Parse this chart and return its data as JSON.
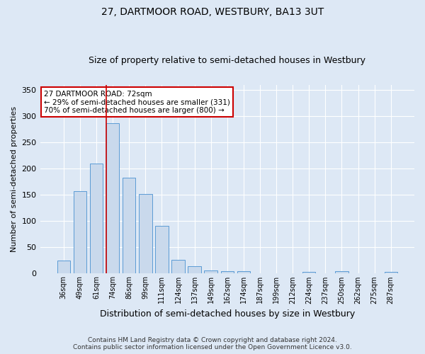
{
  "title": "27, DARTMOOR ROAD, WESTBURY, BA13 3UT",
  "subtitle": "Size of property relative to semi-detached houses in Westbury",
  "xlabel": "Distribution of semi-detached houses by size in Westbury",
  "ylabel": "Number of semi-detached properties",
  "categories": [
    "36sqm",
    "49sqm",
    "61sqm",
    "74sqm",
    "86sqm",
    "99sqm",
    "111sqm",
    "124sqm",
    "137sqm",
    "149sqm",
    "162sqm",
    "174sqm",
    "187sqm",
    "199sqm",
    "212sqm",
    "224sqm",
    "237sqm",
    "250sqm",
    "262sqm",
    "275sqm",
    "287sqm"
  ],
  "values": [
    25,
    157,
    210,
    286,
    183,
    152,
    91,
    26,
    14,
    6,
    5,
    4,
    1,
    0,
    0,
    3,
    0,
    4,
    0,
    0,
    3
  ],
  "bar_color": "#c9d9ec",
  "bar_edge_color": "#5b9bd5",
  "vline_color": "#cc0000",
  "annotation_text": "27 DARTMOOR ROAD: 72sqm\n← 29% of semi-detached houses are smaller (331)\n70% of semi-detached houses are larger (800) →",
  "annotation_box_color": "white",
  "annotation_box_edge_color": "#cc0000",
  "footer_line1": "Contains HM Land Registry data © Crown copyright and database right 2024.",
  "footer_line2": "Contains public sector information licensed under the Open Government Licence v3.0.",
  "ylim": [
    0,
    360
  ],
  "yticks": [
    0,
    50,
    100,
    150,
    200,
    250,
    300,
    350
  ],
  "background_color": "#dde8f5",
  "plot_bg_color": "#dde8f5",
  "grid_color": "#ffffff",
  "title_fontsize": 10,
  "subtitle_fontsize": 9,
  "ylabel_fontsize": 8,
  "xlabel_fontsize": 9,
  "tick_fontsize": 7,
  "footer_fontsize": 6.5,
  "vline_bar_index": 3,
  "bar_width": 0.8
}
